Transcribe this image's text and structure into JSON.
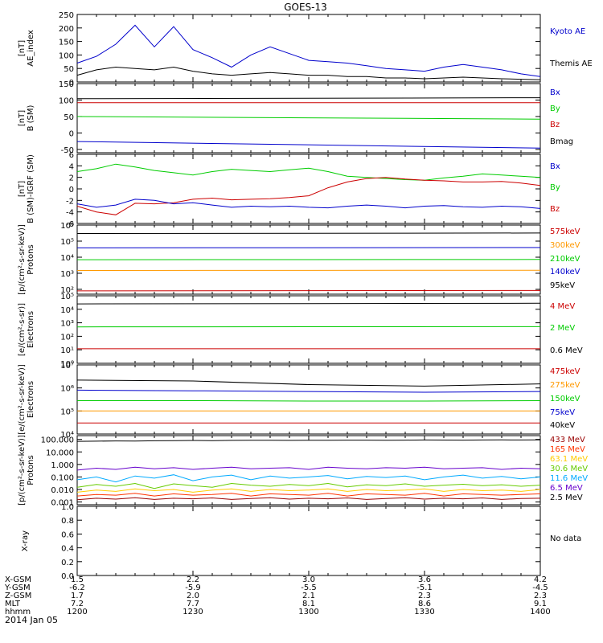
{
  "title": "GOES-13",
  "date_label": "2014 Jan 05",
  "time_axis": {
    "row_labels": [
      "X-GSM",
      "Y-GSM",
      "Z-GSM",
      "MLT",
      "hhmm"
    ],
    "columns": [
      {
        "values": [
          "1.5",
          "-6.2",
          "1.7",
          "7.2",
          "1200"
        ]
      },
      {
        "values": [
          "2.2",
          "-5.9",
          "2.0",
          "7.7",
          "1230"
        ]
      },
      {
        "values": [
          "3.0",
          "-5.5",
          "2.1",
          "8.1",
          "1300"
        ]
      },
      {
        "values": [
          "3.6",
          "-5.1",
          "2.3",
          "8.6",
          "1330"
        ]
      },
      {
        "values": [
          "4.2",
          "-4.5",
          "2.3",
          "9.1",
          "1400"
        ]
      }
    ]
  },
  "chart_data": [
    {
      "type": "line",
      "ylabel": [
        "AE_index",
        "[nT]"
      ],
      "ylim": [
        0,
        250
      ],
      "ytick_values": [
        0,
        50,
        100,
        150,
        200,
        250
      ],
      "ytick_labels": [
        "0",
        "50",
        "100",
        "150",
        "200",
        "250"
      ],
      "scale": "linear",
      "legend": [
        {
          "name": "Kyoto AE",
          "color": "#0000cc"
        },
        {
          "name": "Themis AE",
          "color": "#000000"
        }
      ],
      "x": [
        "1200",
        "1205",
        "1210",
        "1215",
        "1220",
        "1225",
        "1230",
        "1235",
        "1240",
        "1245",
        "1250",
        "1255",
        "1300",
        "1305",
        "1310",
        "1315",
        "1320",
        "1325",
        "1330",
        "1335",
        "1340",
        "1345",
        "1350",
        "1355",
        "1400"
      ],
      "series": [
        {
          "name": "Kyoto AE",
          "color": "#0000cc",
          "values": [
            70,
            95,
            140,
            210,
            130,
            205,
            120,
            90,
            55,
            100,
            130,
            105,
            80,
            75,
            70,
            60,
            50,
            45,
            40,
            55,
            65,
            55,
            45,
            30,
            20
          ]
        },
        {
          "name": "Themis AE",
          "color": "#000000",
          "values": [
            25,
            45,
            55,
            50,
            45,
            55,
            40,
            30,
            25,
            30,
            35,
            30,
            25,
            25,
            20,
            20,
            15,
            15,
            12,
            15,
            18,
            15,
            12,
            10,
            8
          ]
        }
      ]
    },
    {
      "type": "line",
      "ylabel": [
        "B (SM)",
        "[nT]"
      ],
      "ylim": [
        -60,
        150
      ],
      "ytick_values": [
        -50,
        0,
        50,
        100,
        150
      ],
      "ytick_labels": [
        "-50",
        "0",
        "50",
        "100",
        "150"
      ],
      "scale": "linear",
      "legend": [
        {
          "name": "Bx",
          "color": "#0000cc"
        },
        {
          "name": "By",
          "color": "#00cc00"
        },
        {
          "name": "Bz",
          "color": "#cc0000"
        },
        {
          "name": "Bmag",
          "color": "#000000"
        }
      ],
      "x": [
        "1200",
        "1400"
      ],
      "series": [
        {
          "name": "Bmag",
          "color": "#000000",
          "values": [
            104,
            107
          ]
        },
        {
          "name": "Bz",
          "color": "#cc0000",
          "values": [
            92,
            92
          ]
        },
        {
          "name": "By",
          "color": "#00cc00",
          "values": [
            50,
            42
          ]
        },
        {
          "name": "Bx",
          "color": "#0000cc",
          "values": [
            -26,
            -46
          ]
        }
      ]
    },
    {
      "type": "line",
      "ylabel": [
        "B (SM)-IGRF (SM)",
        "[nT]"
      ],
      "ylim": [
        -6,
        6
      ],
      "ytick_values": [
        -6,
        -4,
        -2,
        0,
        2,
        4,
        6
      ],
      "ytick_labels": [
        "-6",
        "-4",
        "-2",
        "0",
        "2",
        "4",
        "6"
      ],
      "scale": "linear",
      "legend": [
        {
          "name": "Bx",
          "color": "#0000cc"
        },
        {
          "name": "By",
          "color": "#00cc00"
        },
        {
          "name": "Bz",
          "color": "#cc0000"
        }
      ],
      "x": [
        "1200",
        "1205",
        "1210",
        "1215",
        "1220",
        "1225",
        "1230",
        "1235",
        "1240",
        "1245",
        "1250",
        "1255",
        "1300",
        "1305",
        "1310",
        "1315",
        "1320",
        "1325",
        "1330",
        "1335",
        "1340",
        "1345",
        "1350",
        "1355",
        "1400"
      ],
      "series": [
        {
          "name": "By",
          "color": "#00cc00",
          "values": [
            3.0,
            3.5,
            4.3,
            3.8,
            3.2,
            2.8,
            2.4,
            3.0,
            3.4,
            3.2,
            3.0,
            3.3,
            3.6,
            3.0,
            2.2,
            2.0,
            1.8,
            1.6,
            1.5,
            1.9,
            2.2,
            2.6,
            2.4,
            2.2,
            2.0
          ]
        },
        {
          "name": "Bz",
          "color": "#cc0000",
          "values": [
            -3.0,
            -4.0,
            -4.5,
            -2.5,
            -2.6,
            -2.4,
            -1.8,
            -1.6,
            -1.9,
            -1.8,
            -1.7,
            -1.5,
            -1.2,
            0.2,
            1.2,
            1.8,
            2.0,
            1.7,
            1.5,
            1.4,
            1.2,
            1.2,
            1.3,
            1.0,
            0.6
          ]
        },
        {
          "name": "Bx",
          "color": "#0000cc",
          "values": [
            -2.6,
            -3.2,
            -2.8,
            -1.8,
            -2.0,
            -2.6,
            -2.4,
            -2.8,
            -3.2,
            -3.0,
            -3.1,
            -3.0,
            -3.2,
            -3.3,
            -3.0,
            -2.8,
            -3.0,
            -3.3,
            -3.0,
            -2.9,
            -3.1,
            -3.2,
            -3.0,
            -3.1,
            -3.4
          ]
        }
      ]
    },
    {
      "type": "line",
      "ylabel": [
        "Protons",
        "[p/(cm²-s-sr-keV)]"
      ],
      "ylim": [
        50,
        1000000
      ],
      "ytick_values": [
        100,
        1000,
        10000,
        100000,
        1000000
      ],
      "ytick_labels": [
        "10²",
        "10³",
        "10⁴",
        "10⁵",
        "10⁶"
      ],
      "scale": "log",
      "legend": [
        {
          "name": "575keV",
          "color": "#cc0000"
        },
        {
          "name": "300keV",
          "color": "#ff9900"
        },
        {
          "name": "210keV",
          "color": "#00cc00"
        },
        {
          "name": "140keV",
          "color": "#0000cc"
        },
        {
          "name": "95keV",
          "color": "#000000"
        }
      ],
      "x": [
        "1200",
        "1400"
      ],
      "series": [
        {
          "name": "95keV",
          "color": "#000000",
          "values": [
            300000,
            320000
          ]
        },
        {
          "name": "140keV",
          "color": "#0000cc",
          "values": [
            38000,
            40000
          ]
        },
        {
          "name": "210keV",
          "color": "#00cc00",
          "values": [
            7000,
            7200
          ]
        },
        {
          "name": "300keV",
          "color": "#ff9900",
          "values": [
            1500,
            1550
          ]
        },
        {
          "name": "575keV",
          "color": "#cc0000",
          "values": [
            80,
            85
          ]
        }
      ]
    },
    {
      "type": "line",
      "ylabel": [
        "Electrons",
        "[e/(cm²-s-sr)]"
      ],
      "ylim": [
        1,
        100000
      ],
      "ytick_values": [
        1,
        10,
        100,
        1000,
        10000,
        100000
      ],
      "ytick_labels": [
        "10⁰",
        "10¹",
        "10²",
        "10³",
        "10⁴",
        "10⁵"
      ],
      "scale": "log",
      "legend": [
        {
          "name": "4 MeV",
          "color": "#cc0000"
        },
        {
          "name": "2 MeV",
          "color": "#00cc00"
        },
        {
          "name": "0.6 MeV",
          "color": "#000000"
        }
      ],
      "x": [
        "1200",
        "1400"
      ],
      "series": [
        {
          "name": "0.6 MeV",
          "color": "#000000",
          "values": [
            25000,
            28000
          ]
        },
        {
          "name": "2 MeV",
          "color": "#00cc00",
          "values": [
            500,
            520
          ]
        },
        {
          "name": "4 MeV",
          "color": "#cc0000",
          "values": [
            12,
            12
          ]
        }
      ]
    },
    {
      "type": "line",
      "ylabel": [
        "Electrons",
        "[e/(cm²-s-sr-keV)]"
      ],
      "ylim": [
        10000,
        10000000
      ],
      "ytick_values": [
        10000,
        100000,
        1000000,
        10000000
      ],
      "ytick_labels": [
        "10⁴",
        "10⁵",
        "10⁶",
        "10⁷"
      ],
      "scale": "log",
      "legend": [
        {
          "name": "475keV",
          "color": "#cc0000"
        },
        {
          "name": "275keV",
          "color": "#ff9900"
        },
        {
          "name": "150keV",
          "color": "#00cc00"
        },
        {
          "name": "75keV",
          "color": "#0000cc"
        },
        {
          "name": "40keV",
          "color": "#000000"
        }
      ],
      "x": [
        "1200",
        "1230",
        "1300",
        "1330",
        "1400"
      ],
      "series": [
        {
          "name": "40keV",
          "color": "#000000",
          "values": [
            2200000,
            2000000,
            1400000,
            1200000,
            1500000
          ]
        },
        {
          "name": "75keV",
          "color": "#0000cc",
          "values": [
            800000,
            750000,
            700000,
            650000,
            700000
          ]
        },
        {
          "name": "150keV",
          "color": "#00cc00",
          "values": [
            280000,
            280000,
            270000,
            270000,
            280000
          ]
        },
        {
          "name": "275keV",
          "color": "#ff9900",
          "values": [
            100000,
            100000,
            100000,
            100000,
            100000
          ]
        },
        {
          "name": "475keV",
          "color": "#cc0000",
          "values": [
            30000,
            30000,
            30000,
            30000,
            30000
          ]
        }
      ]
    },
    {
      "type": "line",
      "ylabel": [
        "Protons",
        "[p/(cm²-s-sr-keV)]"
      ],
      "ylim": [
        0.0006,
        200
      ],
      "ytick_values": [
        0.001,
        0.01,
        0.1,
        1,
        10,
        100
      ],
      "ytick_labels": [
        "0.001",
        "0.010",
        "0.100",
        "1.000",
        "10.000",
        "100.000"
      ],
      "scale": "log",
      "legend": [
        {
          "name": "433 MeV",
          "color": "#990000"
        },
        {
          "name": "165 MeV",
          "color": "#ff3300"
        },
        {
          "name": "63.1 MeV",
          "color": "#ffcc00"
        },
        {
          "name": "30.6 MeV",
          "color": "#66cc00"
        },
        {
          "name": "11.6 MeV",
          "color": "#00aaff"
        },
        {
          "name": "6.5 MeV",
          "color": "#6600cc"
        },
        {
          "name": "2.5 MeV",
          "color": "#000000"
        }
      ],
      "x": [
        "1200",
        "1205",
        "1210",
        "1215",
        "1220",
        "1225",
        "1230",
        "1235",
        "1240",
        "1245",
        "1250",
        "1255",
        "1300",
        "1305",
        "1310",
        "1315",
        "1320",
        "1325",
        "1330",
        "1335",
        "1340",
        "1345",
        "1350",
        "1355",
        "1400"
      ],
      "series": [
        {
          "name": "2.5 MeV",
          "color": "#000000",
          "values": [
            70,
            72,
            75,
            74,
            78,
            80,
            82,
            80,
            83,
            85,
            86,
            84,
            85,
            86,
            88,
            87,
            86,
            88,
            90,
            89,
            88,
            90,
            91,
            90,
            92
          ]
        },
        {
          "name": "6.5 MeV",
          "color": "#6600cc",
          "values": [
            0.35,
            0.5,
            0.4,
            0.6,
            0.45,
            0.55,
            0.4,
            0.5,
            0.6,
            0.45,
            0.5,
            0.55,
            0.4,
            0.6,
            0.5,
            0.45,
            0.55,
            0.5,
            0.6,
            0.45,
            0.5,
            0.55,
            0.4,
            0.5,
            0.45
          ]
        },
        {
          "name": "11.6 MeV",
          "color": "#00aaff",
          "values": [
            0.06,
            0.1,
            0.04,
            0.12,
            0.08,
            0.15,
            0.05,
            0.1,
            0.14,
            0.06,
            0.12,
            0.08,
            0.1,
            0.13,
            0.07,
            0.11,
            0.09,
            0.12,
            0.06,
            0.1,
            0.14,
            0.08,
            0.11,
            0.07,
            0.1
          ]
        },
        {
          "name": "30.6 MeV",
          "color": "#66cc00",
          "values": [
            0.015,
            0.025,
            0.018,
            0.03,
            0.012,
            0.028,
            0.02,
            0.015,
            0.03,
            0.022,
            0.018,
            0.025,
            0.02,
            0.03,
            0.016,
            0.024,
            0.02,
            0.028,
            0.018,
            0.022,
            0.026,
            0.02,
            0.024,
            0.018,
            0.022
          ]
        },
        {
          "name": "63.1 MeV",
          "color": "#ffcc00",
          "values": [
            0.006,
            0.009,
            0.007,
            0.011,
            0.008,
            0.01,
            0.006,
            0.009,
            0.011,
            0.007,
            0.01,
            0.008,
            0.009,
            0.011,
            0.007,
            0.01,
            0.008,
            0.009,
            0.011,
            0.007,
            0.01,
            0.008,
            0.009,
            0.007,
            0.01
          ]
        },
        {
          "name": "165 MeV",
          "color": "#ff3300",
          "values": [
            0.003,
            0.004,
            0.0035,
            0.005,
            0.003,
            0.0045,
            0.0035,
            0.004,
            0.005,
            0.003,
            0.0045,
            0.004,
            0.0035,
            0.005,
            0.003,
            0.0045,
            0.004,
            0.0035,
            0.005,
            0.003,
            0.0045,
            0.004,
            0.0035,
            0.004,
            0.0045
          ]
        },
        {
          "name": "433 MeV",
          "color": "#990000",
          "values": [
            0.0015,
            0.002,
            0.0017,
            0.0022,
            0.0016,
            0.002,
            0.0018,
            0.0021,
            0.0016,
            0.0019,
            0.0022,
            0.0017,
            0.002,
            0.0018,
            0.0021,
            0.0016,
            0.0019,
            0.0022,
            0.0017,
            0.002,
            0.0018,
            0.0021,
            0.0016,
            0.0019,
            0.002
          ]
        }
      ]
    },
    {
      "type": "line",
      "ylabel": [
        "X-ray"
      ],
      "ylim": [
        0,
        1
      ],
      "ytick_values": [
        0,
        0.2,
        0.4,
        0.6,
        0.8,
        1.0
      ],
      "ytick_labels": [
        "0.0",
        "0.2",
        "0.4",
        "0.6",
        "0.8",
        "1.0"
      ],
      "scale": "linear",
      "legend": [
        {
          "name": "No data",
          "color": "#000000"
        }
      ],
      "x": [],
      "series": []
    }
  ]
}
